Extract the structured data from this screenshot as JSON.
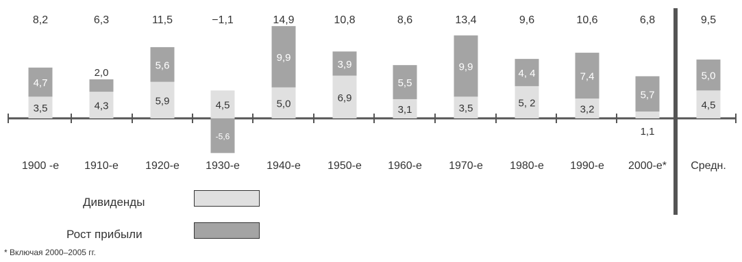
{
  "chart_data": {
    "type": "bar",
    "stacked": true,
    "categories": [
      "1900 -е",
      "1910-е",
      "1920-е",
      "1930-е",
      "1940-е",
      "1950-е",
      "1960-е",
      "1970-е",
      "1980-е",
      "1990-е",
      "2000-е*",
      "Средн."
    ],
    "totals": [
      "8,2",
      "6,3",
      "11,5",
      "−1,1",
      "14,9",
      "10,8",
      "8,6",
      "13,4",
      "9,6",
      "10,6",
      "6,8",
      "9,5"
    ],
    "series": [
      {
        "name": "Дивиденды",
        "values": [
          3.5,
          4.3,
          5.9,
          4.5,
          5.0,
          6.9,
          3.1,
          3.5,
          5.2,
          3.2,
          1.1,
          4.5
        ],
        "labels": [
          "3,5",
          "4,3",
          "5,9",
          "4,5",
          "5,0",
          "6,9",
          "3,1",
          "3,5",
          "5, 2",
          "3,2",
          "1,1",
          "4,5"
        ],
        "color": "#e0e0e0"
      },
      {
        "name": "Рост прибыли",
        "values": [
          4.7,
          2.0,
          5.6,
          -5.6,
          9.9,
          3.9,
          5.5,
          9.9,
          4.4,
          7.4,
          5.7,
          5.0
        ],
        "labels": [
          "4,7",
          "2,0",
          "5,6",
          "-5,6",
          "9,9",
          "3,9",
          "5,5",
          "9,9",
          "4, 4",
          "7,4",
          "5,7",
          "5,0"
        ],
        "color": "#a4a4a4"
      }
    ],
    "footnote": "* Включая 2000–2005 гг.",
    "legend_position": "bottom-left"
  },
  "colors": {
    "dividends": "#e0e0e0",
    "growth": "#a4a4a4",
    "axis": "#555555",
    "text": "#333333"
  }
}
